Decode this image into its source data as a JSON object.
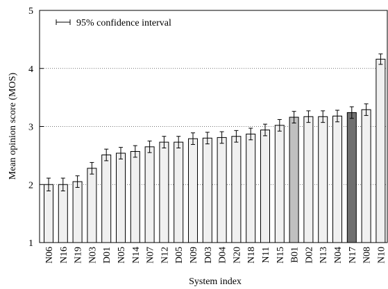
{
  "chart_data": {
    "type": "bar",
    "xlabel": "System index",
    "ylabel": "Mean opinion score (MOS)",
    "error_label": "95% confidence interval",
    "categories": [
      "N06",
      "N16",
      "N19",
      "N03",
      "D01",
      "N05",
      "N14",
      "N07",
      "N12",
      "D05",
      "N09",
      "D03",
      "D04",
      "N20",
      "N18",
      "N11",
      "N15",
      "B01",
      "D02",
      "N13",
      "N04",
      "N17",
      "N08",
      "N10"
    ],
    "values": [
      2.0,
      2.0,
      2.05,
      2.28,
      2.51,
      2.54,
      2.57,
      2.65,
      2.73,
      2.73,
      2.79,
      2.8,
      2.81,
      2.83,
      2.87,
      2.94,
      3.02,
      3.16,
      3.17,
      3.17,
      3.18,
      3.24,
      3.29,
      4.16
    ],
    "errors": [
      0.11,
      0.11,
      0.1,
      0.1,
      0.1,
      0.1,
      0.1,
      0.1,
      0.1,
      0.1,
      0.1,
      0.1,
      0.1,
      0.1,
      0.1,
      0.1,
      0.1,
      0.1,
      0.1,
      0.1,
      0.1,
      0.1,
      0.1,
      0.09
    ],
    "colors": [
      "#f0f0f0",
      "#f0f0f0",
      "#f0f0f0",
      "#f0f0f0",
      "#f0f0f0",
      "#f0f0f0",
      "#f0f0f0",
      "#f0f0f0",
      "#f0f0f0",
      "#f0f0f0",
      "#f0f0f0",
      "#f0f0f0",
      "#f0f0f0",
      "#f0f0f0",
      "#f0f0f0",
      "#f0f0f0",
      "#f0f0f0",
      "#c0c0c0",
      "#f0f0f0",
      "#f0f0f0",
      "#f0f0f0",
      "#707070",
      "#f0f0f0",
      "#f0f0f0"
    ],
    "ylim": [
      1,
      5
    ],
    "yticks": [
      1,
      2,
      3,
      4,
      5
    ],
    "grid": true
  }
}
